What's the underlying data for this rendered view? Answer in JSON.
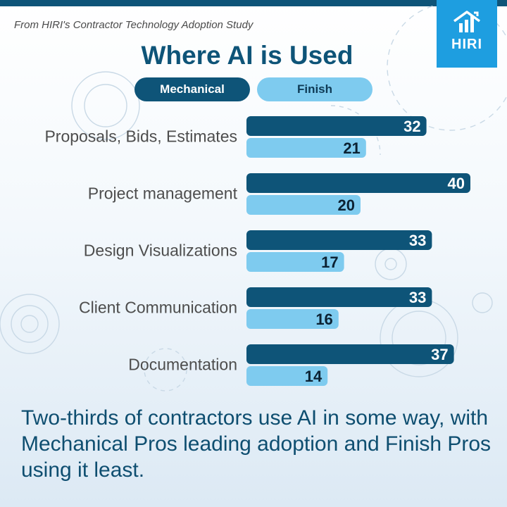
{
  "header": {
    "source": "From HIRI's Contractor Technology Adoption Study",
    "logo_text": "HIRI"
  },
  "chart_data": {
    "type": "bar",
    "orientation": "horizontal",
    "title": "Where AI is Used",
    "categories": [
      "Proposals, Bids, Estimates",
      "Project management",
      "Design Visualizations",
      "Client Communication",
      "Documentation"
    ],
    "series": [
      {
        "name": "Mechanical",
        "values": [
          32,
          40,
          33,
          33,
          37
        ],
        "color": "#0e5478"
      },
      {
        "name": "Finish",
        "values": [
          21,
          20,
          17,
          16,
          14
        ],
        "color": "#7ecbef"
      }
    ],
    "legend_position": "top-center",
    "grid": false
  },
  "footer": {
    "caption": "Two-thirds of contractors use AI in some way, with Mechanical Pros leading adoption and Finish Pros using it least."
  }
}
